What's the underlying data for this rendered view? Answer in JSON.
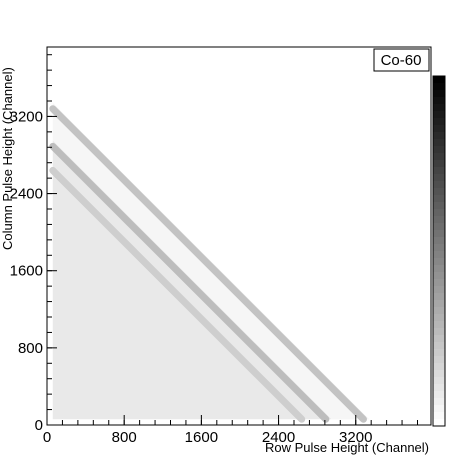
{
  "chart_data": {
    "type": "heatmap",
    "xlabel": "Row Pulse Height (Channel)",
    "ylabel": "Column Pulse Height (Channel)",
    "xlim": [
      0,
      3980
    ],
    "ylim": [
      0,
      3920
    ],
    "x_ticks": [
      "0",
      "800",
      "1600",
      "2400",
      "3200"
    ],
    "y_ticks": [
      "0",
      "800",
      "1600",
      "2400",
      "3200"
    ],
    "x_tick_values": [
      0,
      800,
      1600,
      2400,
      3200
    ],
    "y_tick_values": [
      0,
      800,
      1600,
      2400,
      3200
    ],
    "legend": "Co-60",
    "bands": [
      {
        "sum_channel": 3340,
        "intensity": 0.55
      },
      {
        "sum_channel": 2950,
        "intensity": 0.6
      },
      {
        "sum_channel": 2700,
        "intensity": 0.45
      }
    ],
    "color_scale": "grayscale",
    "grid": false
  }
}
